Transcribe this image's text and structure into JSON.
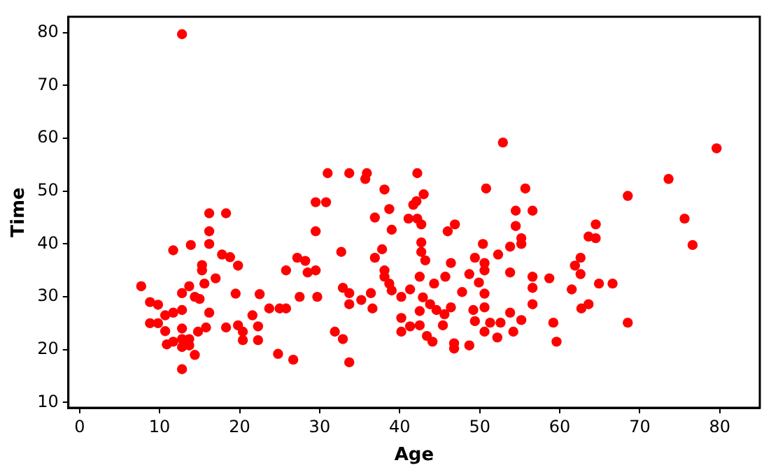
{
  "chart_data": {
    "type": "scatter",
    "xlabel": "Age",
    "ylabel": "Time",
    "xlim": [
      -1.4,
      85
    ],
    "ylim": [
      9,
      83
    ],
    "xticks": [
      0,
      10,
      20,
      30,
      40,
      50,
      60,
      70,
      80
    ],
    "yticks": [
      10,
      20,
      30,
      40,
      50,
      60,
      70,
      80
    ],
    "marker": "circle",
    "series": [
      {
        "color": "#ff0000",
        "x": [
          12.8,
          7.7,
          8.8,
          9.8,
          8.8,
          9.8,
          10.7,
          10.7,
          10.9,
          11.7,
          12.8,
          11.7,
          12.8,
          12.8,
          12.8,
          12.8,
          13.7,
          13.7,
          13.7,
          12.8,
          14.4,
          13.9,
          11.7,
          14.4,
          14.8,
          15,
          15.3,
          15.3,
          15.6,
          15.8,
          16.2,
          16.2,
          16.2,
          16.2,
          18.3,
          17.8,
          18.8,
          18.3,
          17,
          19.5,
          19.8,
          19.8,
          20.4,
          20.4,
          21.6,
          22.3,
          22.3,
          22.5,
          23.7,
          25,
          24.8,
          25.8,
          26.7,
          25.8,
          27.2,
          27.5,
          28.5,
          28.2,
          29.5,
          29.7,
          29.5,
          29.5,
          30.8,
          31,
          33.7,
          35.9,
          35.7,
          32.9,
          31.9,
          32.9,
          33.7,
          32.7,
          33.7,
          35.2,
          33.7,
          36.4,
          36.6,
          36.9,
          36.9,
          38.1,
          38.7,
          39,
          37.8,
          38.1,
          38.1,
          38.7,
          39,
          40.2,
          40.2,
          40.2,
          41.3,
          41.3,
          41.7,
          42.1,
          41.1,
          42.2,
          42.2,
          43,
          42.7,
          42.7,
          42.7,
          43.2,
          42.5,
          42.9,
          42.5,
          42.5,
          43.4,
          44.1,
          43.8,
          44.3,
          44.6,
          45.7,
          46,
          46.9,
          46.4,
          46.4,
          45.6,
          45.4,
          46.8,
          46.8,
          47.8,
          48.7,
          48.7,
          49.2,
          50.4,
          50.6,
          50.6,
          50.6,
          50.6,
          50.6,
          49.9,
          49.4,
          49.4,
          50.8,
          51.3,
          52.3,
          52.6,
          52.2,
          52.9,
          53.8,
          53.8,
          53.8,
          54.2,
          54.5,
          54.5,
          55.2,
          55.2,
          55.2,
          55.7,
          56.6,
          56.6,
          56.6,
          56.6,
          58.7,
          59.6,
          59.2,
          61.9,
          62.6,
          62.6,
          61.5,
          62.7,
          63.6,
          64.5,
          64.5,
          63.6,
          64.9,
          66.6,
          68.5,
          68.5,
          73.6,
          75.6,
          76.6,
          79.6
        ],
        "values": [
          79.7,
          32,
          29,
          28.5,
          25,
          25,
          26.5,
          23.5,
          21,
          27,
          27.5,
          21.5,
          24,
          22,
          20.5,
          16.3,
          22,
          20.8,
          32,
          30.7,
          30,
          39.8,
          38.8,
          19,
          23.4,
          29.6,
          36,
          35,
          32.5,
          24.2,
          27,
          42.4,
          45.8,
          40,
          45.8,
          38,
          37.5,
          24.2,
          33.5,
          30.6,
          35.9,
          24.6,
          23.4,
          21.8,
          26.5,
          21.8,
          24.4,
          30.5,
          27.8,
          27.8,
          19.2,
          27.8,
          18.1,
          35,
          37.4,
          30,
          34.6,
          36.8,
          35,
          30,
          42.4,
          47.9,
          47.9,
          53.4,
          53.4,
          53.4,
          52.3,
          31.7,
          23.4,
          22,
          17.6,
          38.5,
          30.7,
          29.4,
          28.6,
          30.7,
          27.8,
          37.4,
          45,
          50.3,
          46.6,
          42.7,
          39,
          35,
          33.8,
          32.5,
          31.2,
          30,
          26,
          23.4,
          31.4,
          24.4,
          47.4,
          48.1,
          44.8,
          53.4,
          44.8,
          49.4,
          43.7,
          40.3,
          38.5,
          36.9,
          33.8,
          29.9,
          27.3,
          24.6,
          22.6,
          21.5,
          28.6,
          32.5,
          27.5,
          33.8,
          42.4,
          43.7,
          36.4,
          28,
          26.7,
          24.6,
          21.2,
          20.2,
          30.9,
          34.3,
          20.8,
          27.5,
          40,
          36.4,
          35,
          28,
          30.6,
          23.4,
          32.7,
          25.4,
          37.4,
          50.5,
          25.1,
          38,
          25.1,
          22.3,
          59.2,
          39.5,
          34.6,
          27,
          23.4,
          46.3,
          43.4,
          41.1,
          40,
          25.6,
          50.5,
          46.3,
          31.7,
          33.8,
          28.6,
          33.5,
          21.5,
          25.1,
          35.9,
          37.4,
          34.3,
          31.4,
          27.8,
          41.4,
          41.1,
          43.7,
          28.6,
          32.5,
          32.5,
          49.1,
          25.1,
          52.3,
          44.8,
          39.8,
          58.1
        ]
      }
    ]
  }
}
